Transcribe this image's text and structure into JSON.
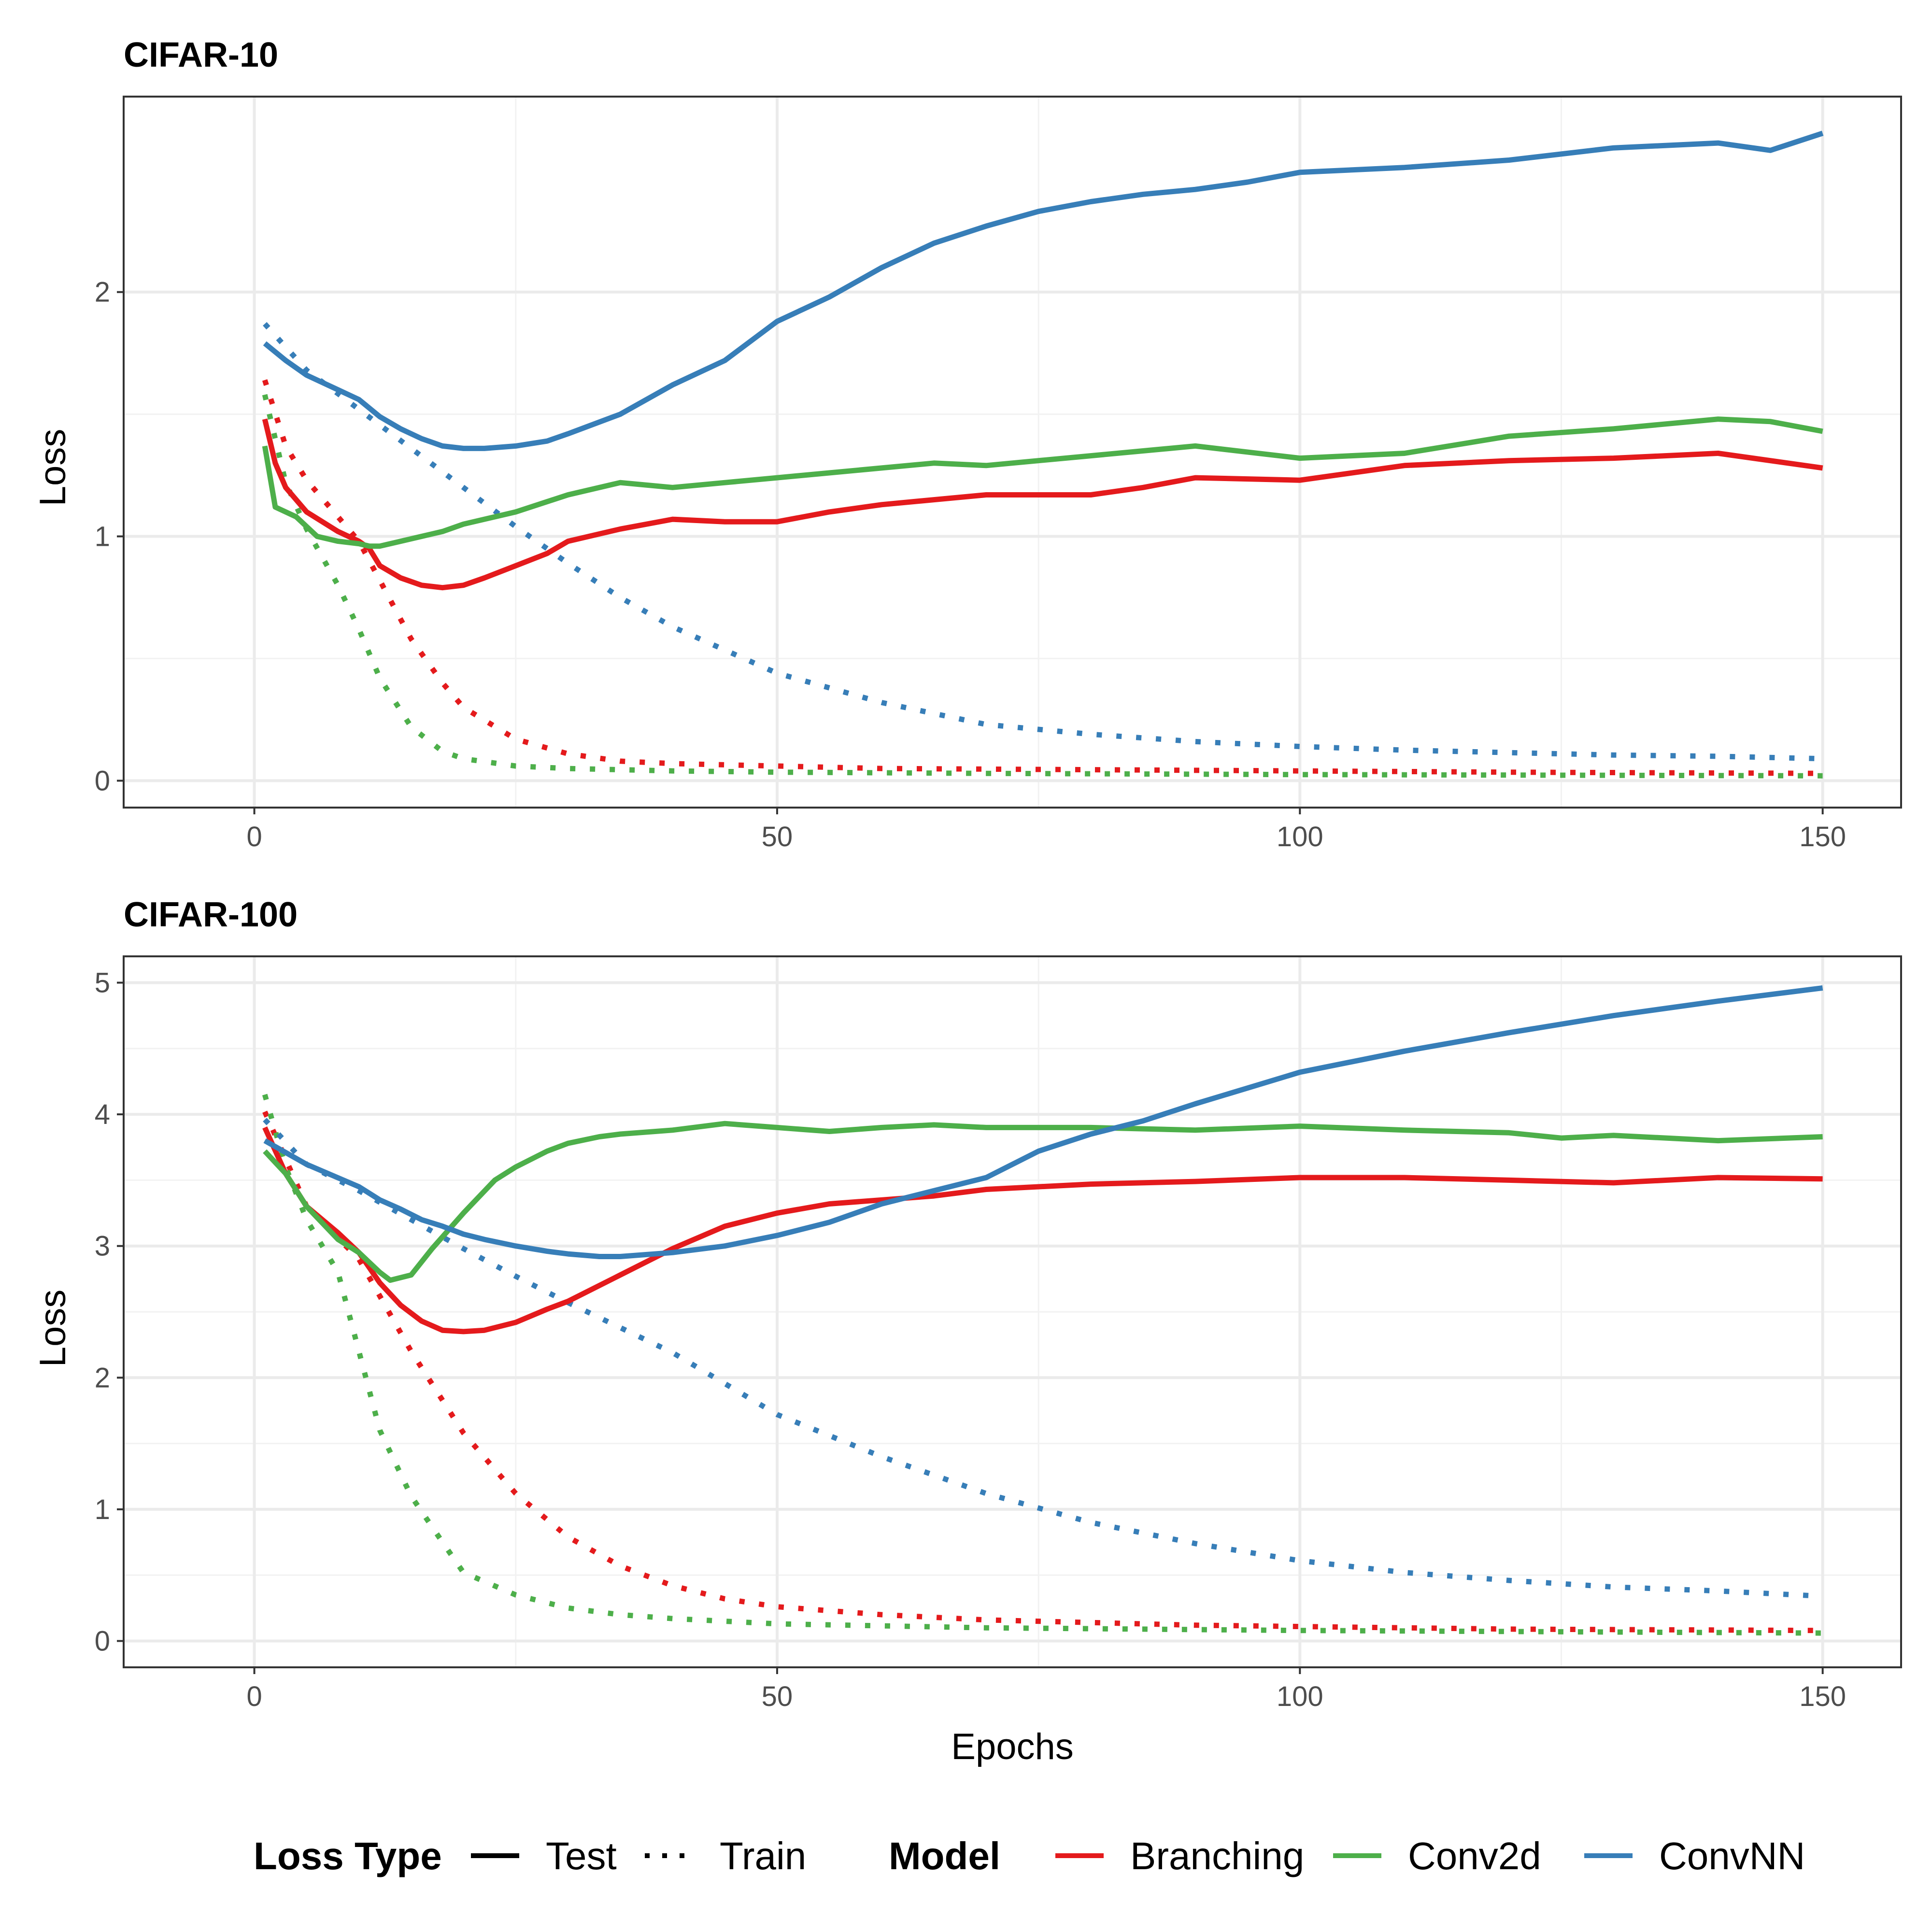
{
  "colors": {
    "Branching": "#e41a1c",
    "Conv2d": "#4daf4a",
    "ConvNN": "#377eb8"
  },
  "legend": {
    "loss_type_title": "Loss Type",
    "loss_types": [
      "Test",
      "Train"
    ],
    "model_title": "Model",
    "models": [
      "Branching",
      "Conv2d",
      "ConvNN"
    ]
  },
  "chart_data": [
    {
      "type": "line",
      "title": "CIFAR-10",
      "xlabel": "",
      "ylabel": "Loss",
      "xlim": [
        -12.5,
        157.5
      ],
      "ylim": [
        -0.11,
        2.8
      ],
      "xticks": [
        0,
        50,
        100,
        150
      ],
      "yticks": [
        0,
        1,
        2
      ],
      "series": [
        {
          "name": "Branching",
          "loss": "Test",
          "x": [
            1,
            2,
            3,
            5,
            8,
            10,
            11,
            12,
            14,
            16,
            18,
            20,
            22,
            25,
            28,
            30,
            35,
            40,
            45,
            50,
            55,
            60,
            65,
            70,
            80,
            85,
            90,
            100,
            110,
            120,
            130,
            140,
            150
          ],
          "values": [
            1.48,
            1.3,
            1.2,
            1.1,
            1.02,
            0.98,
            0.95,
            0.88,
            0.83,
            0.8,
            0.79,
            0.8,
            0.83,
            0.88,
            0.93,
            0.98,
            1.03,
            1.07,
            1.06,
            1.06,
            1.1,
            1.13,
            1.15,
            1.17,
            1.17,
            1.2,
            1.24,
            1.23,
            1.29,
            1.31,
            1.32,
            1.34,
            1.28
          ]
        },
        {
          "name": "Conv2d",
          "loss": "Test",
          "x": [
            1,
            2,
            4,
            6,
            8,
            10,
            11,
            12,
            14,
            16,
            18,
            20,
            25,
            30,
            35,
            40,
            45,
            50,
            55,
            60,
            65,
            70,
            80,
            90,
            100,
            110,
            120,
            130,
            140,
            145,
            150
          ],
          "values": [
            1.37,
            1.12,
            1.08,
            1.0,
            0.98,
            0.97,
            0.96,
            0.96,
            0.98,
            1.0,
            1.02,
            1.05,
            1.1,
            1.17,
            1.22,
            1.2,
            1.22,
            1.24,
            1.26,
            1.28,
            1.3,
            1.29,
            1.33,
            1.37,
            1.32,
            1.34,
            1.41,
            1.44,
            1.48,
            1.47,
            1.43
          ]
        },
        {
          "name": "ConvNN",
          "loss": "Test",
          "x": [
            1,
            3,
            5,
            8,
            10,
            12,
            14,
            16,
            18,
            20,
            22,
            25,
            28,
            30,
            35,
            40,
            45,
            50,
            55,
            60,
            65,
            70,
            75,
            80,
            85,
            90,
            95,
            100,
            110,
            120,
            130,
            140,
            145,
            150
          ],
          "values": [
            1.79,
            1.72,
            1.66,
            1.6,
            1.56,
            1.49,
            1.44,
            1.4,
            1.37,
            1.36,
            1.36,
            1.37,
            1.39,
            1.42,
            1.5,
            1.62,
            1.72,
            1.88,
            1.98,
            2.1,
            2.2,
            2.27,
            2.33,
            2.37,
            2.4,
            2.42,
            2.45,
            2.49,
            2.51,
            2.54,
            2.59,
            2.61,
            2.58,
            2.65
          ]
        },
        {
          "name": "Branching",
          "loss": "Train",
          "x": [
            1,
            3,
            5,
            8,
            10,
            12,
            15,
            18,
            20,
            25,
            30,
            35,
            40,
            50,
            60,
            80,
            100,
            120,
            150
          ],
          "values": [
            1.64,
            1.37,
            1.23,
            1.08,
            0.98,
            0.82,
            0.58,
            0.4,
            0.3,
            0.17,
            0.11,
            0.08,
            0.07,
            0.06,
            0.05,
            0.045,
            0.04,
            0.035,
            0.03
          ]
        },
        {
          "name": "Conv2d",
          "loss": "Train",
          "x": [
            1,
            3,
            5,
            8,
            10,
            12,
            15,
            18,
            20,
            25,
            30,
            40,
            50,
            70,
            100,
            150
          ],
          "values": [
            1.58,
            1.22,
            1.03,
            0.8,
            0.62,
            0.42,
            0.22,
            0.12,
            0.09,
            0.06,
            0.05,
            0.04,
            0.035,
            0.03,
            0.025,
            0.02
          ]
        },
        {
          "name": "ConvNN",
          "loss": "Train",
          "x": [
            1,
            5,
            10,
            15,
            20,
            25,
            30,
            35,
            40,
            50,
            60,
            70,
            80,
            90,
            100,
            110,
            120,
            130,
            140,
            150
          ],
          "values": [
            1.87,
            1.68,
            1.52,
            1.36,
            1.2,
            1.04,
            0.89,
            0.75,
            0.63,
            0.44,
            0.32,
            0.23,
            0.19,
            0.16,
            0.14,
            0.125,
            0.115,
            0.105,
            0.1,
            0.09
          ]
        }
      ]
    },
    {
      "type": "line",
      "title": "CIFAR-100",
      "xlabel": "Epochs",
      "ylabel": "Loss",
      "xlim": [
        -12.5,
        157.5
      ],
      "ylim": [
        -0.2,
        5.2
      ],
      "xticks": [
        0,
        50,
        100,
        150
      ],
      "yticks": [
        0,
        1,
        2,
        3,
        4,
        5
      ],
      "series": [
        {
          "name": "Branching",
          "loss": "Test",
          "x": [
            1,
            3,
            5,
            8,
            10,
            12,
            14,
            16,
            18,
            20,
            22,
            25,
            28,
            30,
            35,
            40,
            45,
            50,
            55,
            60,
            65,
            70,
            80,
            90,
            100,
            110,
            120,
            130,
            140,
            150
          ],
          "values": [
            3.9,
            3.55,
            3.3,
            3.1,
            2.95,
            2.72,
            2.55,
            2.43,
            2.36,
            2.35,
            2.36,
            2.42,
            2.52,
            2.58,
            2.78,
            2.98,
            3.15,
            3.25,
            3.32,
            3.35,
            3.38,
            3.43,
            3.47,
            3.49,
            3.52,
            3.52,
            3.5,
            3.48,
            3.52,
            3.51
          ]
        },
        {
          "name": "Conv2d",
          "loss": "Test",
          "x": [
            1,
            3,
            5,
            8,
            10,
            12,
            13,
            15,
            17,
            20,
            23,
            25,
            28,
            30,
            33,
            35,
            40,
            45,
            50,
            55,
            60,
            65,
            70,
            80,
            90,
            100,
            110,
            120,
            125,
            130,
            140,
            150
          ],
          "values": [
            3.72,
            3.55,
            3.3,
            3.05,
            2.95,
            2.8,
            2.74,
            2.78,
            2.98,
            3.25,
            3.5,
            3.6,
            3.72,
            3.78,
            3.83,
            3.85,
            3.88,
            3.93,
            3.9,
            3.87,
            3.9,
            3.92,
            3.9,
            3.9,
            3.88,
            3.91,
            3.88,
            3.86,
            3.82,
            3.84,
            3.8,
            3.83
          ]
        },
        {
          "name": "ConvNN",
          "loss": "Test",
          "x": [
            1,
            5,
            10,
            12,
            14,
            16,
            18,
            20,
            22,
            25,
            28,
            30,
            33,
            35,
            40,
            45,
            50,
            55,
            60,
            65,
            70,
            75,
            80,
            85,
            90,
            95,
            100,
            110,
            120,
            130,
            140,
            150
          ],
          "values": [
            3.8,
            3.62,
            3.45,
            3.35,
            3.28,
            3.2,
            3.15,
            3.09,
            3.05,
            3.0,
            2.96,
            2.94,
            2.92,
            2.92,
            2.95,
            3.0,
            3.08,
            3.18,
            3.32,
            3.42,
            3.52,
            3.72,
            3.85,
            3.95,
            4.08,
            4.2,
            4.32,
            4.48,
            4.62,
            4.75,
            4.86,
            4.96
          ]
        },
        {
          "name": "Branching",
          "loss": "Train",
          "x": [
            1,
            5,
            10,
            15,
            20,
            25,
            30,
            35,
            40,
            45,
            50,
            60,
            70,
            80,
            90,
            100,
            120,
            150
          ],
          "values": [
            4.02,
            3.3,
            2.9,
            2.2,
            1.58,
            1.12,
            0.79,
            0.57,
            0.42,
            0.32,
            0.26,
            0.2,
            0.16,
            0.14,
            0.12,
            0.11,
            0.09,
            0.08
          ]
        },
        {
          "name": "Conv2d",
          "loss": "Train",
          "x": [
            1,
            3,
            5,
            8,
            10,
            12,
            15,
            18,
            20,
            25,
            30,
            35,
            40,
            50,
            70,
            100,
            150
          ],
          "values": [
            4.15,
            3.6,
            3.2,
            2.8,
            2.2,
            1.6,
            1.1,
            0.75,
            0.52,
            0.35,
            0.25,
            0.2,
            0.17,
            0.13,
            0.1,
            0.08,
            0.06
          ]
        },
        {
          "name": "ConvNN",
          "loss": "Train",
          "x": [
            1,
            5,
            10,
            15,
            20,
            25,
            30,
            35,
            40,
            50,
            60,
            70,
            80,
            90,
            100,
            110,
            120,
            130,
            140,
            150
          ],
          "values": [
            3.96,
            3.62,
            3.42,
            3.2,
            2.98,
            2.77,
            2.57,
            2.38,
            2.19,
            1.72,
            1.4,
            1.12,
            0.9,
            0.74,
            0.61,
            0.52,
            0.46,
            0.41,
            0.38,
            0.34
          ]
        }
      ]
    }
  ]
}
